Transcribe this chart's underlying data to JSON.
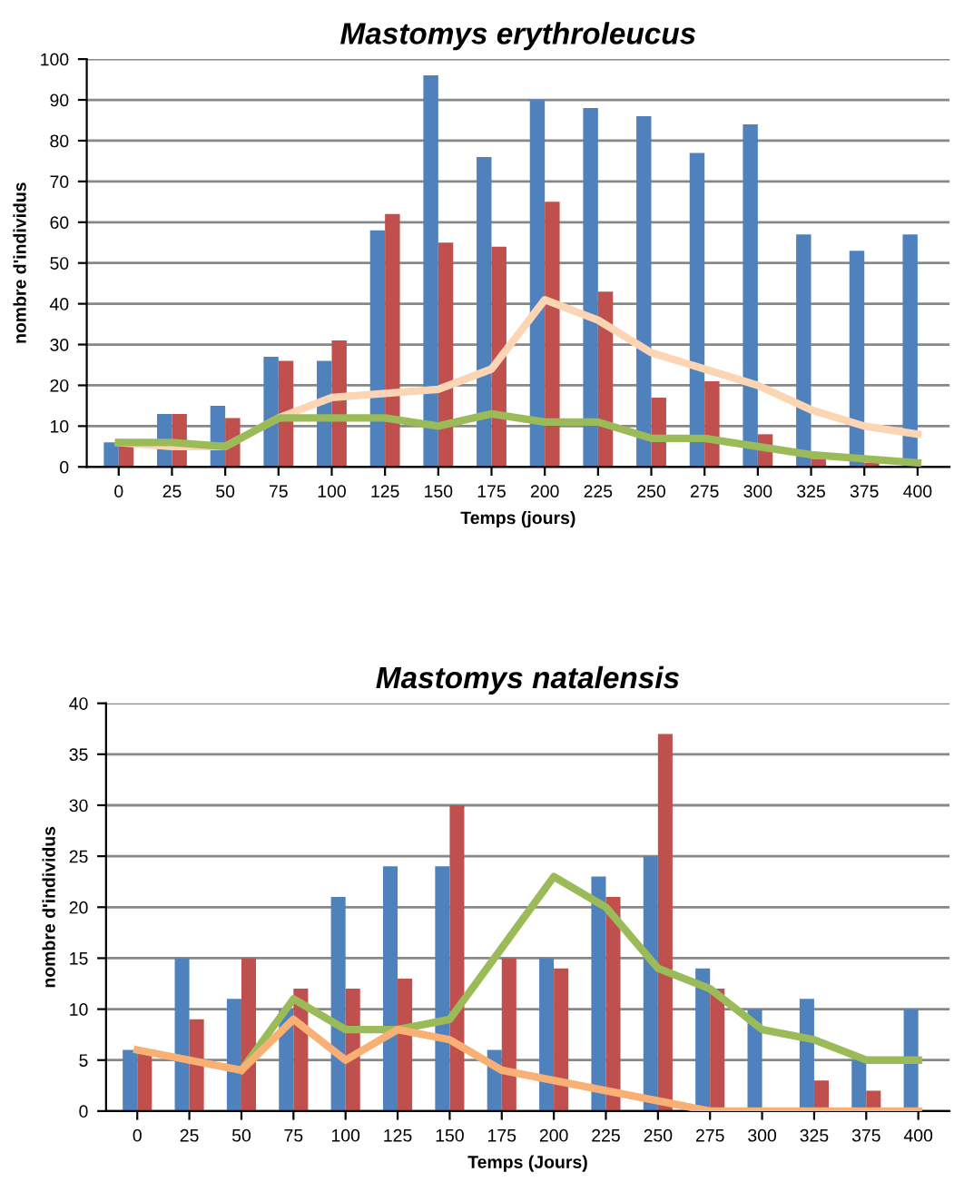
{
  "chart_data": [
    {
      "type": "bar",
      "title": "Mastomys erythroleucus",
      "xlabel": "Temps (jours)",
      "ylabel": "nombre d'individus",
      "categories": [
        "0",
        "25",
        "50",
        "75",
        "100",
        "125",
        "150",
        "175",
        "200",
        "225",
        "250",
        "275",
        "300",
        "325",
        "375",
        "400"
      ],
      "series": [
        {
          "color": "#4f81bd",
          "values": [
            6,
            13,
            15,
            27,
            26,
            58,
            96,
            76,
            90,
            88,
            86,
            77,
            84,
            57,
            53,
            57
          ]
        },
        {
          "color": "#c0504d",
          "values": [
            6,
            13,
            12,
            26,
            31,
            62,
            55,
            54,
            65,
            43,
            17,
            21,
            8,
            2,
            1,
            0
          ]
        },
        {
          "type": "line",
          "color": "#fcd5b5",
          "values": [
            6,
            5,
            5,
            12,
            17,
            18,
            19,
            24,
            41,
            36,
            28,
            24,
            20,
            14,
            10,
            8
          ]
        },
        {
          "type": "line",
          "color": "#9bbb59",
          "values": [
            6,
            6,
            5,
            12,
            12,
            12,
            10,
            13,
            11,
            11,
            7,
            7,
            5,
            3,
            2,
            1
          ]
        }
      ],
      "ylim": [
        0,
        100
      ],
      "yticks": [
        0,
        10,
        20,
        30,
        40,
        50,
        60,
        70,
        80,
        90,
        100
      ],
      "grid": "y",
      "legend": false
    },
    {
      "type": "bar",
      "title": "Mastomys natalensis",
      "xlabel": "Temps (Jours)",
      "ylabel": "nombre d'individus",
      "categories": [
        "0",
        "25",
        "50",
        "75",
        "100",
        "125",
        "150",
        "175",
        "200",
        "225",
        "250",
        "275",
        "300",
        "325",
        "375",
        "400"
      ],
      "series": [
        {
          "color": "#4f81bd",
          "values": [
            6,
            15,
            11,
            10,
            21,
            24,
            24,
            6,
            15,
            23,
            25,
            14,
            10,
            11,
            5,
            10
          ]
        },
        {
          "color": "#c0504d",
          "values": [
            6,
            9,
            15,
            12,
            12,
            13,
            30,
            15,
            14,
            21,
            37,
            12,
            0,
            3,
            2,
            0
          ]
        },
        {
          "type": "line",
          "color": "#9bbb59",
          "values": [
            null,
            null,
            4,
            11,
            8,
            8,
            9,
            16,
            23,
            20,
            14,
            12,
            8,
            7,
            5,
            5
          ]
        },
        {
          "type": "line",
          "color": "#f9b074",
          "values": [
            6,
            5,
            4,
            9,
            5,
            8,
            7,
            4,
            3,
            2,
            1,
            0,
            0,
            0,
            0,
            0
          ]
        }
      ],
      "ylim": [
        0,
        40
      ],
      "yticks": [
        0,
        5,
        10,
        15,
        20,
        25,
        30,
        35,
        40
      ],
      "grid": "y",
      "legend": false
    }
  ]
}
